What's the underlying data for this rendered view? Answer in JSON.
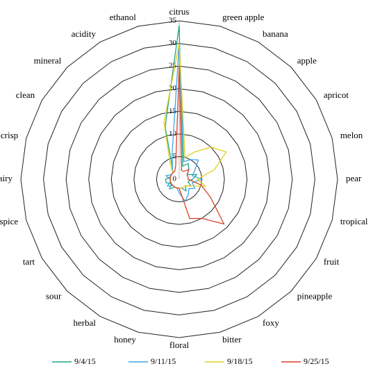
{
  "chart_data": {
    "type": "radar",
    "categories": [
      "citrus",
      "green apple",
      "banana",
      "apple",
      "apricot",
      "melon",
      "pear",
      "tropical",
      "fruit",
      "pineapple",
      "foxy",
      "bitter",
      "floral",
      "honey",
      "herbal",
      "sour",
      "tart",
      "spice",
      "dairy",
      "crisp",
      "clean",
      "mineral",
      "acidity",
      "ethanol"
    ],
    "ylim": [
      0,
      35
    ],
    "yticks": [
      0,
      5,
      10,
      15,
      20,
      25,
      30,
      35
    ],
    "grid": true,
    "series": [
      {
        "name": "9/4/15",
        "color": "#1fa58a",
        "values": [
          34,
          3,
          4,
          3,
          2,
          4,
          3,
          2,
          3,
          2,
          3,
          2,
          2,
          2,
          2,
          3,
          2,
          3,
          3,
          2,
          2,
          2,
          3,
          12
        ]
      },
      {
        "name": "9/11/15",
        "color": "#3aa6e8",
        "values": [
          30,
          4,
          5,
          6,
          4,
          3,
          5,
          3,
          4,
          3,
          4,
          5,
          3,
          2,
          2,
          2,
          3,
          2,
          2,
          3,
          2,
          2,
          3,
          6
        ]
      },
      {
        "name": "9/18/15",
        "color": "#e3cf1c",
        "values": [
          30,
          5,
          7,
          10,
          12,
          8,
          4,
          6,
          3,
          2,
          2,
          2,
          2,
          2,
          2,
          2,
          2,
          2,
          2,
          2,
          2,
          2,
          4,
          13
        ]
      },
      {
        "name": "9/25/15",
        "color": "#d9412b",
        "values": [
          25,
          2,
          2,
          3,
          2,
          2,
          2,
          5,
          8,
          14,
          10,
          9,
          2,
          2,
          2,
          2,
          2,
          2,
          2,
          2,
          2,
          2,
          2,
          3
        ]
      }
    ]
  }
}
